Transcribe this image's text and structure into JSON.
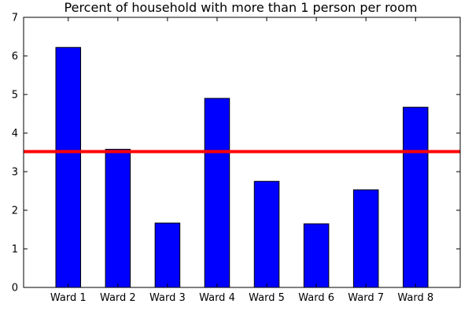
{
  "chart_data": {
    "type": "bar",
    "title": "Percent of household with more than 1 person per room",
    "xlabel": "",
    "ylabel": "",
    "categories": [
      "Ward 1",
      "Ward 2",
      "Ward 3",
      "Ward 4",
      "Ward 5",
      "Ward 6",
      "Ward 7",
      "Ward 8"
    ],
    "values": [
      6.22,
      3.58,
      1.67,
      4.9,
      2.75,
      1.65,
      2.53,
      4.67
    ],
    "ylim": [
      0,
      7
    ],
    "yticks": [
      0,
      1,
      2,
      3,
      4,
      5,
      6,
      7
    ],
    "reference_line": {
      "value": 3.52
    },
    "grid": false,
    "colors": {
      "bar": "#0000ff",
      "bar_edge": "#000000",
      "reference_line": "#ff0000"
    }
  }
}
